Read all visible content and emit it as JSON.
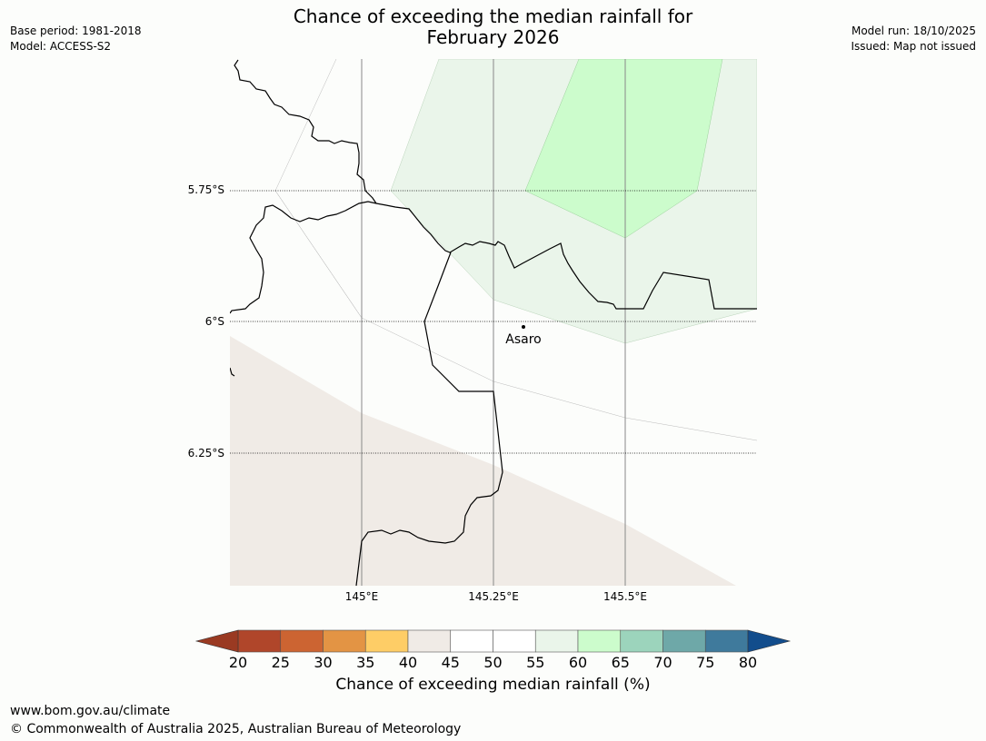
{
  "header": {
    "title_line1": "Chance of exceeding the median rainfall for",
    "title_line2": "February 2026",
    "base_period": "Base period: 1981-2018",
    "model": "Model: ACCESS-S2",
    "model_run": "Model run: 18/10/2025",
    "issued": "Issued: Map not issued"
  },
  "map": {
    "lat_labels": [
      "5.75°S",
      "6°S",
      "6.25°S"
    ],
    "lon_labels": [
      "145°E",
      "145.25°E",
      "145.5°E"
    ],
    "place": {
      "name": "Asaro"
    },
    "fill_colors": {
      "tan_40_45": "#f0ebe6",
      "light_green_55_60": "#eaf5ea",
      "green_60_65": "#ccfccc"
    }
  },
  "colorbar": {
    "ticks": [
      "20",
      "25",
      "30",
      "35",
      "40",
      "45",
      "50",
      "55",
      "60",
      "65",
      "70",
      "75",
      "80"
    ],
    "under_color": "#9a3a22",
    "over_color": "#124d8c",
    "colors": [
      "#b0462a",
      "#cc6432",
      "#e39444",
      "#fecd66",
      "#f0ebe6",
      "#ffffff",
      "#ffffff",
      "#eaf5ea",
      "#ccfccc",
      "#9cd4bc",
      "#6ea8a8",
      "#3f7a9c"
    ],
    "label": "Chance of exceeding median rainfall (%)"
  },
  "footer": {
    "url": "www.bom.gov.au/climate",
    "copyright": "© Commonwealth of Australia 2025, Australian Bureau of Meteorology"
  }
}
